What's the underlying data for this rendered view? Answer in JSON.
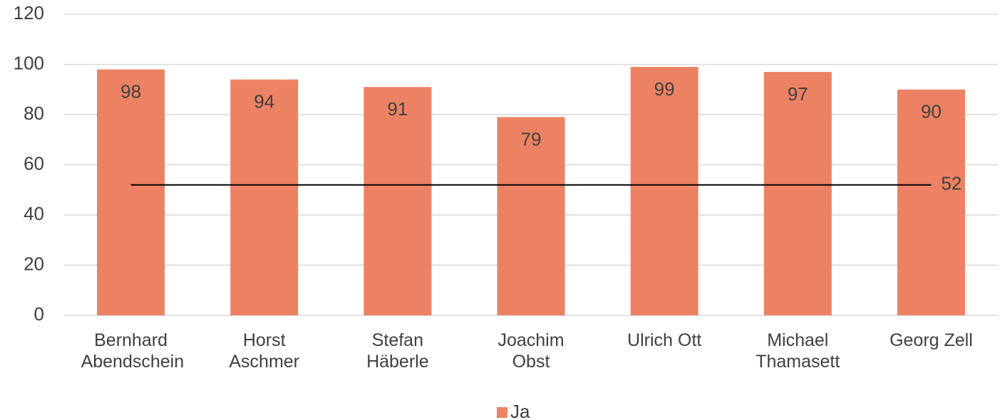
{
  "chart_data": {
    "type": "bar",
    "categories": [
      "Bernhard Abendschein",
      "Horst Aschmer",
      "Stefan Häberle",
      "Joachim Obst",
      "Ulrich Ott",
      "Michael Thamasett",
      "Georg Zell"
    ],
    "series": [
      {
        "name": "Ja",
        "color": "#ec8263",
        "values": [
          98,
          94,
          91,
          79,
          99,
          97,
          90
        ]
      },
      {
        "type": "line",
        "color": "#000000",
        "values": [
          52,
          52,
          52,
          52,
          52,
          52,
          52
        ]
      }
    ],
    "ylim": [
      0,
      120
    ],
    "yticks": [
      0,
      20,
      40,
      60,
      80,
      100,
      120
    ],
    "grid": true,
    "legend": "bottom"
  }
}
